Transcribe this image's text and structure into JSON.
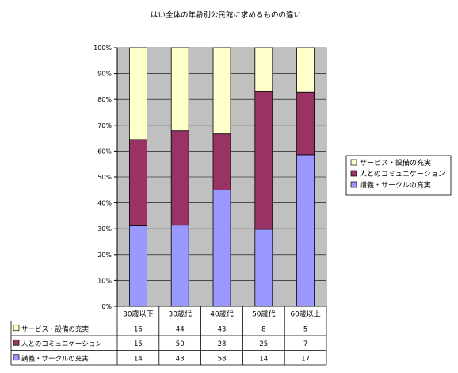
{
  "chart_data": {
    "type": "bar",
    "stacked": "percent",
    "title": "はい全体の年齢別公民館に求めるものの違い",
    "categories": [
      "30歳以下",
      "30歳代",
      "40歳代",
      "50歳代",
      "60歳以上"
    ],
    "series": [
      {
        "name": "講義・サークルの充実",
        "values": [
          14,
          43,
          58,
          14,
          17
        ],
        "color": "#9999ff"
      },
      {
        "name": "人とのコミュニケーション",
        "values": [
          15,
          50,
          28,
          25,
          7
        ],
        "color": "#993366"
      },
      {
        "name": "サービス・設備の充実",
        "values": [
          16,
          44,
          43,
          8,
          5
        ],
        "color": "#ffffcc"
      }
    ],
    "legend_order": [
      "サービス・設備の充実",
      "人とのコミュニケーション",
      "講義・サークルの充実"
    ],
    "y_ticks": [
      "0%",
      "10%",
      "20%",
      "30%",
      "40%",
      "50%",
      "60%",
      "70%",
      "80%",
      "90%",
      "100%"
    ],
    "ylim": [
      0,
      100
    ],
    "plot_background": "#c0c0c0",
    "grid": true,
    "legend_position": "right",
    "data_table": true
  }
}
